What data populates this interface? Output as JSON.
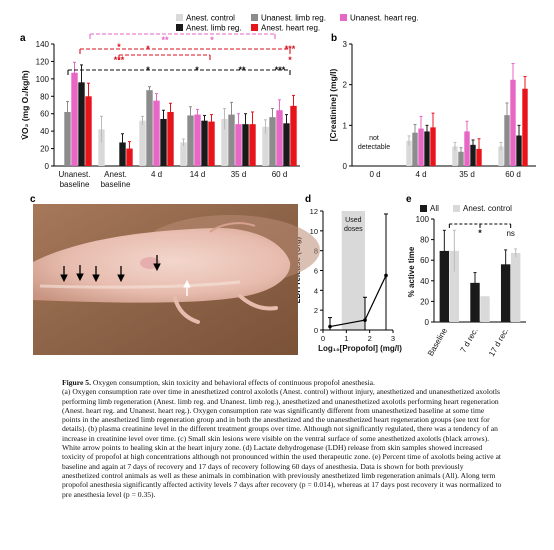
{
  "panels": {
    "a": "a",
    "b": "b",
    "c": "c",
    "d": "d",
    "e": "e"
  },
  "legend_top": [
    {
      "label": "Anest. control",
      "color": "#d9d9d9"
    },
    {
      "label": "Unanest. limb reg.",
      "color": "#8c8c8c"
    },
    {
      "label": "Unanest. heart reg.",
      "color": "#e667c4"
    },
    {
      "label": "Anest. limb reg.",
      "color": "#1a1a1a"
    },
    {
      "label": "Anest. heart reg.",
      "color": "#e8141c"
    }
  ],
  "colors": {
    "control": "#d9d9d9",
    "unlimb": "#8c8c8c",
    "unheart": "#e667c4",
    "alimb": "#1a1a1a",
    "aheart": "#e8141c",
    "bracket_black": "#111111",
    "bracket_red": "#d8111b",
    "bracket_pink": "#e667c4"
  },
  "chart_data": [
    {
      "id": "a",
      "type": "bar",
      "ylabel": "V̇O₂ (mg O₂/kg/h)",
      "ylim": [
        0,
        140
      ],
      "yticks": [
        0,
        20,
        40,
        60,
        80,
        100,
        120,
        140
      ],
      "categories": [
        "Unanest. baseline",
        "Anest. baseline",
        "4 d",
        "14 d",
        "35 d",
        "60 d"
      ],
      "series": [
        {
          "name": "Anest. control",
          "values": [
            null,
            42,
            52,
            27,
            54,
            45
          ],
          "err": [
            0,
            15,
            5,
            4,
            12,
            8
          ]
        },
        {
          "name": "Unanest. limb reg.",
          "values": [
            62,
            null,
            87,
            58,
            59,
            56
          ],
          "err": [
            12,
            0,
            4,
            10,
            14,
            10
          ]
        },
        {
          "name": "Unanest. heart reg.",
          "values": [
            107,
            null,
            75,
            59,
            48,
            64
          ],
          "err": [
            12,
            0,
            8,
            6,
            12,
            12
          ]
        },
        {
          "name": "Anest. limb reg.",
          "values": [
            96,
            27,
            54,
            52,
            48,
            49
          ],
          "err": [
            20,
            10,
            10,
            6,
            12,
            10
          ]
        },
        {
          "name": "Anest. heart reg.",
          "values": [
            80,
            20,
            62,
            51,
            48,
            69
          ],
          "err": [
            15,
            8,
            10,
            8,
            14,
            12
          ]
        }
      ],
      "annotations": [
        "*",
        "***",
        "*",
        "*",
        "**",
        "***",
        "*",
        "***",
        "*",
        "**",
        "*"
      ]
    },
    {
      "id": "b",
      "type": "bar",
      "ylabel": "[Creatinine] (mg/l)",
      "ylim": [
        0,
        3
      ],
      "yticks": [
        0,
        1,
        2,
        3
      ],
      "categories": [
        "0 d",
        "4 d",
        "35 d",
        "60 d"
      ],
      "note": "not detectable",
      "series": [
        {
          "name": "Anest. control",
          "values": [
            null,
            0.62,
            0.48,
            0.48
          ],
          "err": [
            0,
            0.12,
            0.1,
            0.1
          ]
        },
        {
          "name": "Unanest. limb reg.",
          "values": [
            null,
            0.82,
            0.35,
            1.25
          ],
          "err": [
            0,
            0.2,
            0.1,
            0.3
          ]
        },
        {
          "name": "Unanest. heart reg.",
          "values": [
            null,
            0.92,
            0.85,
            2.12
          ],
          "err": [
            0,
            0.3,
            0.25,
            0.4
          ]
        },
        {
          "name": "Anest. limb reg.",
          "values": [
            null,
            0.85,
            0.52,
            0.75
          ],
          "err": [
            0,
            0.15,
            0.12,
            0.25
          ]
        },
        {
          "name": "Anest. heart reg.",
          "values": [
            null,
            0.95,
            0.42,
            1.9
          ],
          "err": [
            0,
            0.35,
            0.25,
            0.3
          ]
        }
      ]
    },
    {
      "id": "d",
      "type": "line",
      "ylabel": "LDH release (U/g)",
      "xlabel": "Log₁₀[Propofol] (mg/l)",
      "xlim": [
        0,
        3
      ],
      "ylim": [
        0,
        12
      ],
      "xticks": [
        0,
        1,
        2,
        3
      ],
      "yticks": [
        0,
        2,
        4,
        6,
        8,
        10,
        12
      ],
      "shade": {
        "x0": 0.8,
        "x1": 1.8,
        "label1": "Used",
        "label2": "doses"
      },
      "x": [
        0.3,
        1.8,
        2.7
      ],
      "y": [
        0.35,
        1.0,
        5.5
      ],
      "yerr": [
        0.9,
        2.3,
        6.2
      ]
    },
    {
      "id": "e",
      "type": "bar",
      "ylabel": "% active time",
      "ylim": [
        0,
        100
      ],
      "yticks": [
        0,
        20,
        40,
        60,
        80,
        100
      ],
      "categories": [
        "Baseline",
        "7 d rec.",
        "17 d rec."
      ],
      "series": [
        {
          "name": "All",
          "values": [
            69,
            38,
            56
          ],
          "err": [
            20,
            10,
            14
          ]
        },
        {
          "name": "Anest. control",
          "values": [
            69,
            25,
            67
          ],
          "err": [
            20,
            0,
            4
          ]
        }
      ],
      "annotations": [
        "*",
        "ns"
      ]
    }
  ],
  "photo": {
    "arrow_labels": []
  },
  "caption": {
    "title": "Figure 5.",
    "title_text": "Oxygen consumption, skin toxicity and behavioral effects of continuous propofol anesthesia.",
    "body": "(a) Oxygen consumption rate over time in anesthetized control axolotls (Anest. control) without injury, anesthetized and unanesthetized axolotls performing limb regeneration (Anest. limb reg. and Unanest. limb reg.), anesthetized and unanesthetized axolotls performing heart regeneration (Anest. heart reg. and Unanest. heart reg.). Oxygen consumption rate was significantly different from unanesthetized baseline at some time points in the anesthetized limb regeneration group and in both the anesthetized and the unanesthetized heart regeneration groups (see text for details). (b) plasma creatinine level in the different treatment groups over time. Although not significantly regulated, there was a tendency of an increase in creatinine level over time. (c) Small skin lesions were visible on the ventral surface of some anesthetized axolotls (black arrows). White arrow points to healing skin at the heart injury zone. (d) Lactate dehydrogenase (LDH) release from skin samples showed increased toxicity of propofol at high concentrations although not pronounced within the used therapeutic zone. (e) Percent time of axolotls being active at baseline and again at 7 days of recovery and 17 days of recovery following 60 days of anesthesia. Data is shown for both previously anesthetized control animals as well as these animals in combination with previously anesthetized limb regeneration animals (All). Along term propofol anesthesia significantly affected activity levels 7 days after recovery (p = 0.014), whereas at 17 days post recovery it was normalized to pre anesthesia level (p = 0.35)."
  }
}
